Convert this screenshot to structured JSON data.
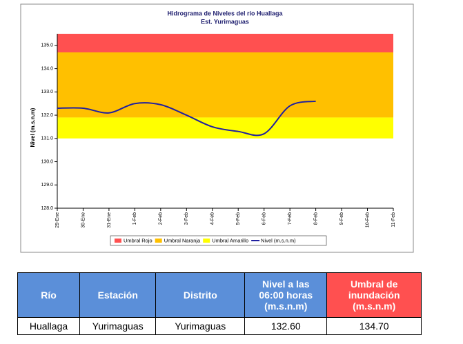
{
  "chart_data": {
    "type": "line",
    "title": "Hidrograma de Niveles del río Huallaga",
    "subtitle": "Est. Yurimaguas",
    "y_label": "Nivel (m.s.n.m)",
    "categories": [
      "29-Ene",
      "30-Ene",
      "31-Ene",
      "1-Feb",
      "2-Feb",
      "3-Feb",
      "4-Feb",
      "5-Feb",
      "6-Feb",
      "7-Feb",
      "8-Feb",
      "9-Feb",
      "10-Feb",
      "11-Feb"
    ],
    "series": [
      {
        "name": "Nivel (m.s.n.m)",
        "color": "#1f1fa0",
        "values": [
          132.3,
          132.3,
          132.1,
          132.5,
          132.45,
          132.0,
          131.5,
          131.3,
          131.2,
          132.4,
          132.6,
          null,
          null,
          null
        ]
      }
    ],
    "bands": [
      {
        "name": "Umbral Rojo",
        "color": "#ff5050",
        "from": 134.7,
        "to": 135.5
      },
      {
        "name": "Umbral Naranja",
        "color": "#ffc000",
        "from": 131.9,
        "to": 134.7
      },
      {
        "name": "Umbral Amarillo",
        "color": "#ffff00",
        "from": 131.0,
        "to": 131.9
      }
    ],
    "ylim": [
      128,
      135.5
    ],
    "yticks": [
      {
        "value": 128,
        "label": "128.0"
      },
      {
        "value": 129,
        "label": "129.0"
      },
      {
        "value": 130,
        "label": "130.0"
      },
      {
        "value": 131,
        "label": "131.0"
      },
      {
        "value": 132,
        "label": "132.0"
      },
      {
        "value": 133,
        "label": "133.0"
      },
      {
        "value": 134,
        "label": "134.0"
      },
      {
        "value": 135,
        "label": "135.0"
      }
    ],
    "legend": "bottom"
  },
  "table": {
    "header": [
      "Río",
      "Estación",
      "Distrito",
      "Nivel a las 06:00 horas (m.s.n.m)",
      "Umbral de inundación (m.s.n.m)"
    ],
    "rows": [
      [
        "Huallaga",
        "Yurimaguas",
        "Yurimaguas",
        "132.60",
        "134.70"
      ]
    ]
  }
}
